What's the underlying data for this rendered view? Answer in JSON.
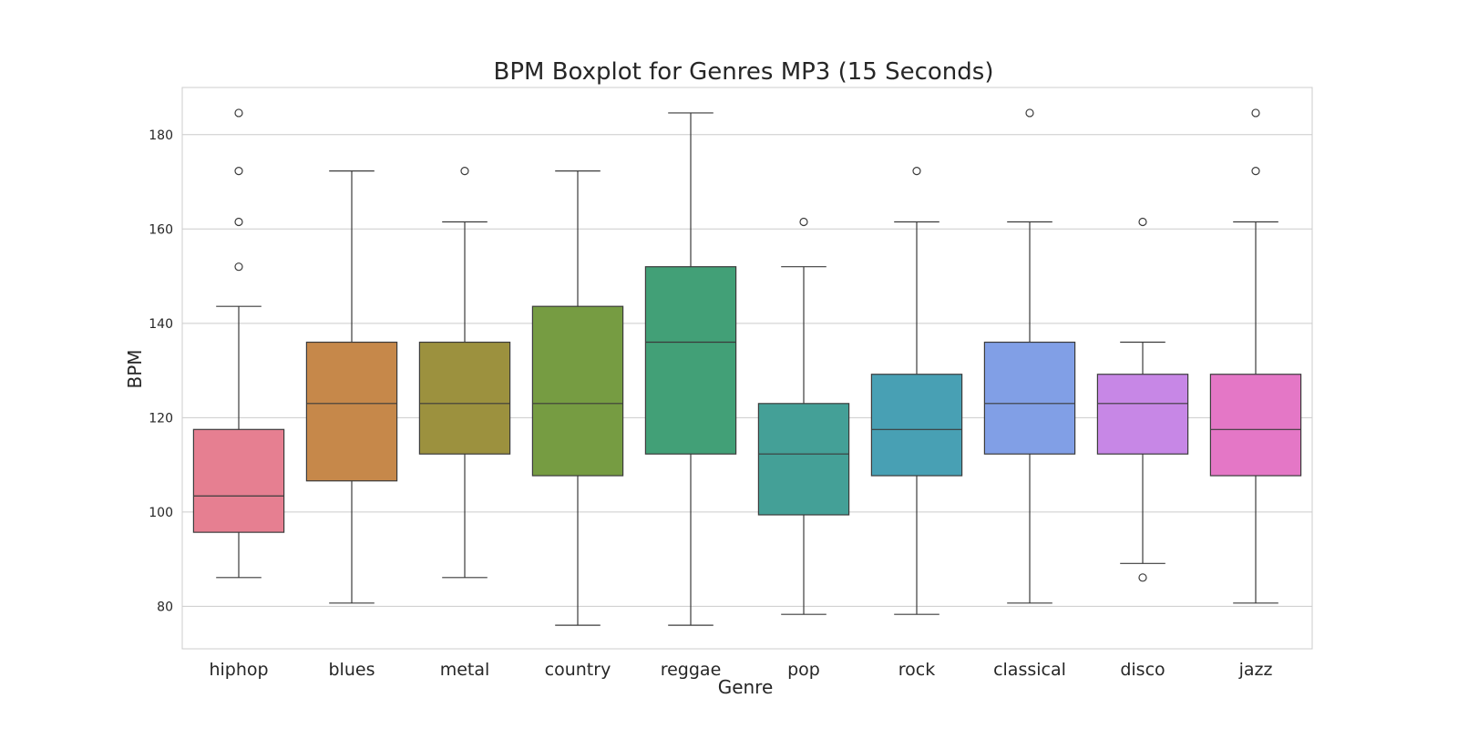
{
  "chart_data": {
    "type": "box",
    "title": "BPM Boxplot for Genres MP3 (15 Seconds)",
    "xlabel": "Genre",
    "ylabel": "BPM",
    "ylim": [
      71,
      190
    ],
    "yticks": [
      80,
      100,
      120,
      140,
      160,
      180
    ],
    "grid": "horizontal",
    "categories": [
      "hiphop",
      "blues",
      "metal",
      "country",
      "reggae",
      "pop",
      "rock",
      "classical",
      "disco",
      "jazz"
    ],
    "series": [
      {
        "category": "hiphop",
        "whisker_low": 86.1,
        "q1": 95.7,
        "median": 103.4,
        "q3": 117.5,
        "whisker_high": 143.6,
        "outliers": [
          152.0,
          161.5,
          172.3,
          184.6
        ],
        "color": "#e67f91"
      },
      {
        "category": "blues",
        "whisker_low": 80.7,
        "q1": 106.6,
        "median": 123.0,
        "q3": 136.0,
        "whisker_high": 172.3,
        "outliers": [],
        "color": "#c6884a"
      },
      {
        "category": "metal",
        "whisker_low": 86.1,
        "q1": 112.3,
        "median": 123.0,
        "q3": 136.0,
        "whisker_high": 161.5,
        "outliers": [
          172.3
        ],
        "color": "#9c913e"
      },
      {
        "category": "country",
        "whisker_low": 76.0,
        "q1": 107.7,
        "median": 123.0,
        "q3": 143.6,
        "whisker_high": 172.3,
        "outliers": [],
        "color": "#769c42"
      },
      {
        "category": "reggae",
        "whisker_low": 76.0,
        "q1": 112.3,
        "median": 136.0,
        "q3": 152.0,
        "whisker_high": 184.6,
        "outliers": [],
        "color": "#42a077"
      },
      {
        "category": "pop",
        "whisker_low": 78.3,
        "q1": 99.4,
        "median": 112.3,
        "q3": 123.0,
        "whisker_high": 152.0,
        "outliers": [
          161.5
        ],
        "color": "#44a097"
      },
      {
        "category": "rock",
        "whisker_low": 78.3,
        "q1": 107.7,
        "median": 117.5,
        "q3": 129.2,
        "whisker_high": 161.5,
        "outliers": [
          172.3
        ],
        "color": "#48a0b4"
      },
      {
        "category": "classical",
        "whisker_low": 80.7,
        "q1": 112.3,
        "median": 123.0,
        "q3": 136.0,
        "whisker_high": 161.5,
        "outliers": [
          184.6
        ],
        "color": "#819fe6"
      },
      {
        "category": "disco",
        "whisker_low": 89.1,
        "q1": 112.3,
        "median": 123.0,
        "q3": 129.2,
        "whisker_high": 136.0,
        "outliers": [
          86.1,
          161.5
        ],
        "color": "#c787e6"
      },
      {
        "category": "jazz",
        "whisker_low": 80.7,
        "q1": 107.7,
        "median": 117.5,
        "q3": 129.2,
        "whisker_high": 161.5,
        "outliers": [
          172.3,
          184.6
        ],
        "color": "#e477c6"
      }
    ]
  }
}
